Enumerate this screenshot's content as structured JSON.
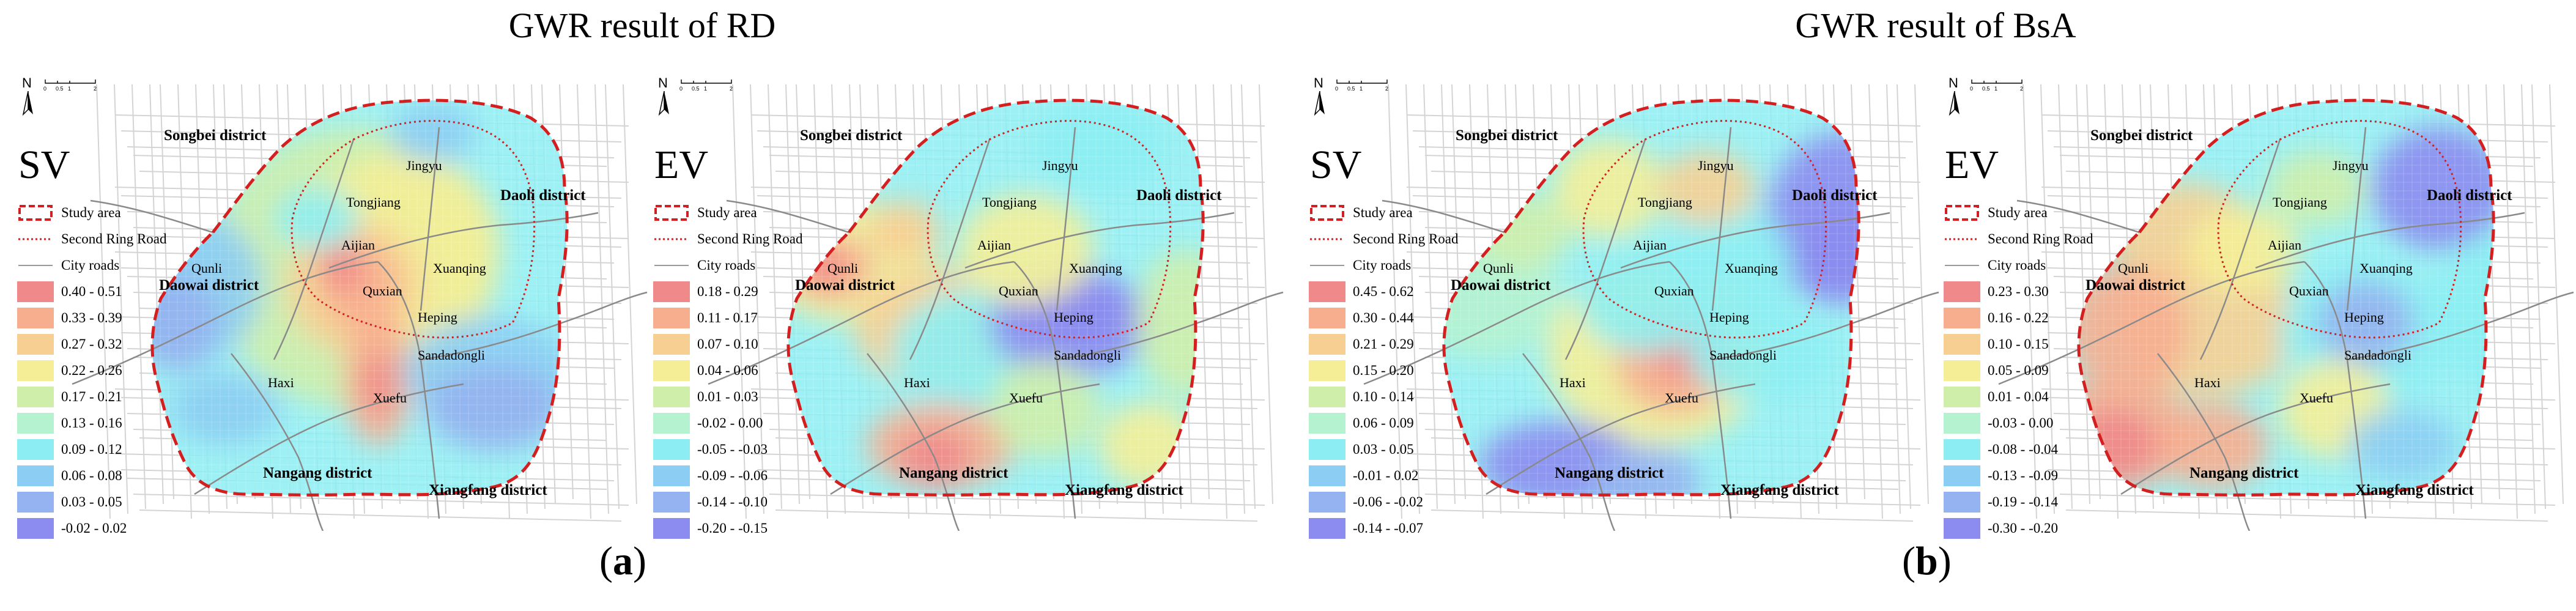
{
  "group_titles": [
    "GWR result of RD",
    "GWR result of BsA"
  ],
  "sub_labels": [
    {
      "open": "(",
      "letter": "a",
      "close": ")"
    },
    {
      "open": "(",
      "letter": "b",
      "close": ")"
    }
  ],
  "north_arrow": "N",
  "scale_ticks": [
    "0",
    "0.5",
    "1",
    "2"
  ],
  "common_legend": {
    "study_area": "Study area",
    "ring_road": "Second Ring Road",
    "city_roads": "City roads"
  },
  "colors": [
    "#f08a8a",
    "#f7ae8f",
    "#f7cf92",
    "#f5ee96",
    "#cfeeaa",
    "#b5f2cf",
    "#8ceef2",
    "#8ccdf3",
    "#95b3f0",
    "#8c8cf0"
  ],
  "boundary_color": "#d31f1f",
  "districts": {
    "songbei": "Songbei district",
    "daoli": "Daoli district",
    "daowai": "Daowai district",
    "nangang": "Nangang district",
    "xiangfang": "Xiangfang district"
  },
  "places": {
    "jingyu": "Jingyu",
    "tongjiang": "Tongjiang",
    "aijian": "Aijian",
    "xuanqing": "Xuanqing",
    "quxian": "Quxian",
    "heping": "Heping",
    "qunli": "Qunli",
    "sandadongli": "Sandadongli",
    "haxi": "Haxi",
    "xuefu": "Xuefu"
  },
  "panels": [
    {
      "var": "SV",
      "classes": [
        "0.40 - 0.51",
        "0.33 - 0.39",
        "0.27 - 0.32",
        "0.22 - 0.26",
        "0.17 - 0.21",
        "0.13 - 0.16",
        "0.09 - 0.12",
        "0.06 - 0.08",
        "0.03 - 0.05",
        "-0.02 - 0.02"
      ]
    },
    {
      "var": "EV",
      "classes": [
        "0.18 - 0.29",
        "0.11 - 0.17",
        "0.07 - 0.10",
        "0.04 - 0.06",
        "0.01 - 0.03",
        "-0.02 - 0.00",
        "-0.05 - -0.03",
        "-0.09 - -0.06",
        "-0.14 - -0.10",
        "-0.20 - -0.15"
      ]
    },
    {
      "var": "SV",
      "classes": [
        "0.45 - 0.62",
        "0.30 - 0.44",
        "0.21 - 0.29",
        "0.15 - 0.20",
        "0.10 - 0.14",
        "0.06 - 0.09",
        "0.03 - 0.05",
        "-0.01 - 0.02",
        "-0.06 - -0.02",
        "-0.14 - -0.07"
      ]
    },
    {
      "var": "EV",
      "classes": [
        "0.23 - 0.30",
        "0.16 - 0.22",
        "0.10 - 0.15",
        "0.05 - 0.09",
        "0.01 - 0.04",
        "-0.03 - 0.00",
        "-0.08 - -0.04",
        "-0.13 - -0.09",
        "-0.19 - -0.14",
        "-0.30 - -0.20"
      ]
    }
  ]
}
